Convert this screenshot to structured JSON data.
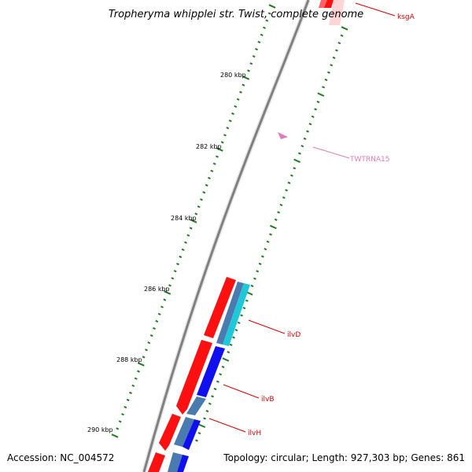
{
  "title": "Tropheryma whipplei str. Twist, complete genome",
  "accession": "Accession: NC_004572",
  "summary": "Topology: circular; Length: 927,303 bp; Genes: 861",
  "colors": {
    "background": "#ffffff",
    "backbone": "#808080",
    "tick": "#1e7b1e",
    "forward_cds": "#ff1010",
    "blast_steel": "#4a7bb0",
    "blast_cyan": "#1ec8d8",
    "blast_blue": "#1010ee",
    "trna": "#e27bbd",
    "label_red": "#dd0000"
  },
  "ticks": [
    {
      "label": "280 kbp"
    },
    {
      "label": "282 kbp"
    },
    {
      "label": "284 kbp"
    },
    {
      "label": "286 kbp"
    },
    {
      "label": "288 kbp"
    },
    {
      "label": "290 kbp"
    }
  ],
  "gene_labels": [
    {
      "name": "ksgA",
      "color": "#dd0000"
    },
    {
      "name": "TWTRNA15",
      "color": "#e27bbd"
    },
    {
      "name": "ilvD",
      "color": "#dd0000"
    },
    {
      "name": "ilvB",
      "color": "#dd0000"
    },
    {
      "name": "ilvH",
      "color": "#dd0000"
    }
  ]
}
